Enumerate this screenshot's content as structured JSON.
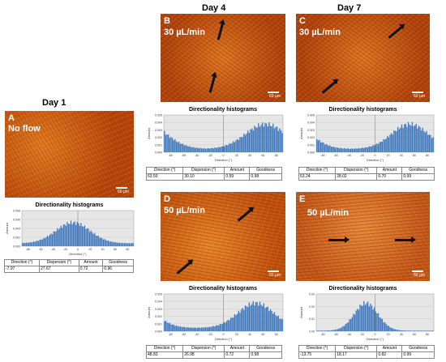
{
  "days": {
    "day1": "Day 1",
    "day4": "Day 4",
    "day7": "Day 7"
  },
  "scale_label": "60 µm",
  "histogram": {
    "title": "Directionality histograms",
    "ylabel": "Amount",
    "xlabel": "Direction (°)",
    "xticks": [
      "-80",
      "-60",
      "-40",
      "-20",
      "0",
      "20",
      "40",
      "60",
      "80"
    ],
    "bar_color": "#3f78bd"
  },
  "table_headers": [
    "Direction (°)",
    "Dispersion (°)",
    "Amount",
    "Goodness"
  ],
  "panels": [
    {
      "id": "A",
      "condition": "No flow",
      "yticks": [
        "0.008",
        "0.006",
        "0.004",
        "0.002",
        "0.000"
      ],
      "stats": {
        "direction": "-7.97",
        "dispersion": "27.67",
        "amount": "0.72",
        "goodness": "0.96"
      }
    },
    {
      "id": "B",
      "condition": "30 µL/min",
      "yticks": [
        "0.005",
        "0.004",
        "0.003",
        "0.002",
        "0.001",
        "0.000"
      ],
      "stats": {
        "direction": "63.50",
        "dispersion": "30.10",
        "amount": "0.59",
        "goodness": "0.98"
      }
    },
    {
      "id": "C",
      "condition": "30 µL/min",
      "yticks": [
        "0.005",
        "0.004",
        "0.003",
        "0.002",
        "0.001",
        "0.000"
      ],
      "stats": {
        "direction": "53.24",
        "dispersion": "28.02",
        "amount": "0.70",
        "goodness": "0.99"
      }
    },
    {
      "id": "D",
      "condition": "50 µL/min",
      "yticks": [
        "0.005",
        "0.004",
        "0.003",
        "0.002",
        "0.001",
        "0.000"
      ],
      "stats": {
        "direction": "48.83",
        "dispersion": "26.98",
        "amount": "0.72",
        "goodness": "0.98"
      }
    },
    {
      "id": "E",
      "condition": "50 µL/min",
      "yticks": [
        "0.03",
        "0.02",
        "0.01",
        "0.00"
      ],
      "stats": {
        "direction": "-13.75",
        "dispersion": "18.17",
        "amount": "0.82",
        "goodness": "0.99"
      }
    }
  ]
}
